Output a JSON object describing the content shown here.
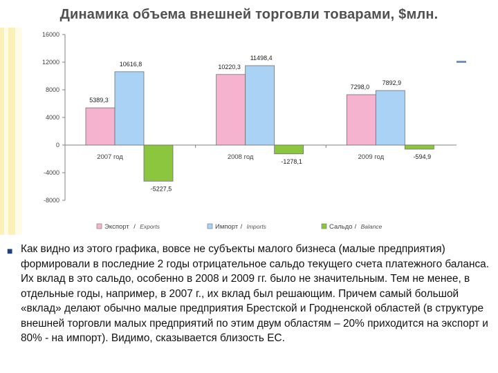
{
  "title": "Динамика объема внешней торговли товарами, $млн.",
  "paragraph": "Как видно из этого графика, вовсе не субъекты малого бизнеса (малые предприятия) формировали в последние 2 годы отрицательное сальдо текущего счета платежного баланса. Их вклад в это сальдо, особенно в 2008 и 2009 гг. было не значительным. Тем не менее, в отдельные годы, например, в 2007 г., их вклад был решающим. Причем самый большой «вклад» делают обычно малые предприятия Брестской и Гродненской областей (в структуре внешней торговли малых предприятий по этим двум областям – 20% приходится на экспорт и 80% - на импорт). Видимо, сказывается близость ЕС.",
  "colors": {
    "export": "#f6b3d0",
    "import": "#a9d2f5",
    "balance": "#8cc63f",
    "bar_edge": "#6f6f6f"
  },
  "chart_data": {
    "type": "bar",
    "categories": [
      "2007 год",
      "2008 год",
      "2009 год"
    ],
    "series": [
      {
        "name": "Экспорт",
        "name_en": "Exports",
        "values": [
          5389.3,
          10220.3,
          7298.0
        ],
        "labels": [
          "5389,3",
          "10220,3",
          "7298,0"
        ]
      },
      {
        "name": "Импорт",
        "name_en": "Imports",
        "values": [
          10616.8,
          11498.4,
          7892.9
        ],
        "labels": [
          "10616,8",
          "11498,4",
          "7892,9"
        ]
      },
      {
        "name": "Сальдо",
        "name_en": "Balance",
        "values": [
          -5227.5,
          -1278.1,
          -594.9
        ],
        "labels": [
          "-5227,5",
          "-1278,1",
          "-594,9"
        ]
      }
    ],
    "ylim": [
      -8000,
      16000
    ],
    "yticks": [
      16000,
      12000,
      8000,
      4000,
      0,
      -4000,
      -8000
    ],
    "ytick_labels": [
      "16000",
      "12000",
      "8000",
      "4000",
      "0",
      "-4000",
      "-8000"
    ],
    "legend_position": "bottom",
    "grid": false
  }
}
